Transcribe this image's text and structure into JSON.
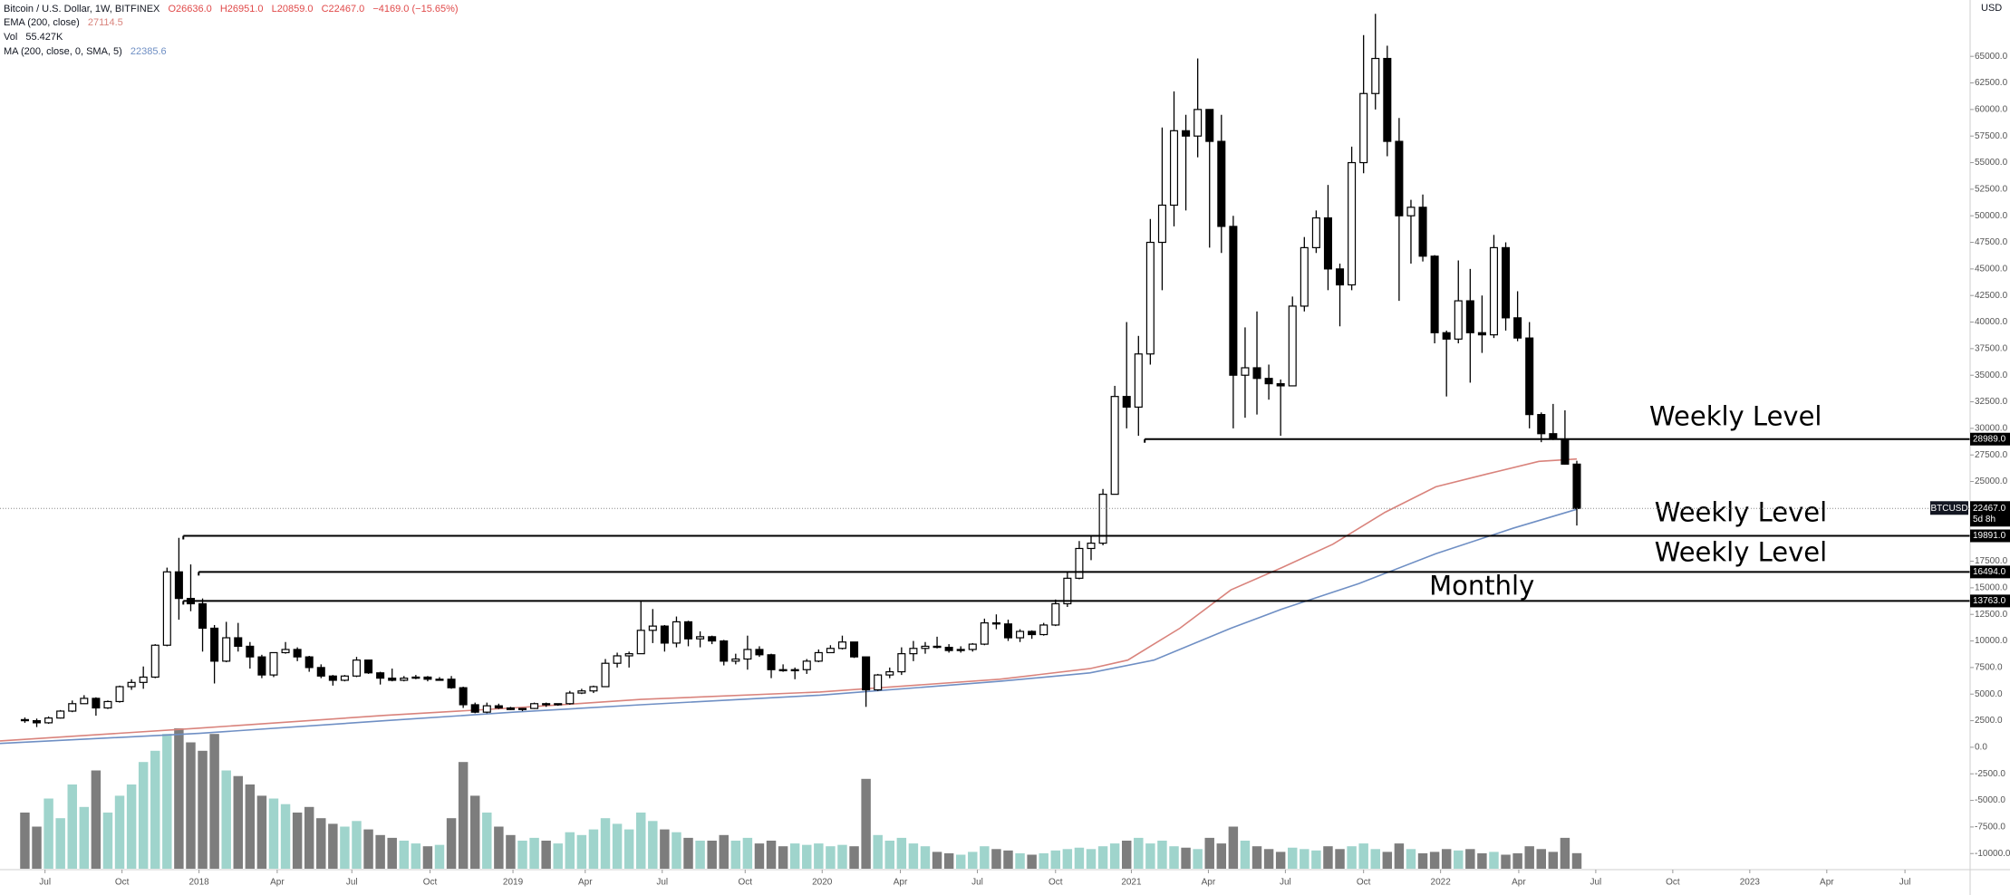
{
  "chart_data": {
    "type": "candlestick",
    "header": {
      "title": "Bitcoin / U.S. Dollar, 1W, BITFINEX",
      "ohlc": [
        "O26636.0",
        "H26951.0",
        "L20859.0",
        "C22467.0",
        "−4169.0 (−15.65%)"
      ],
      "volume_name": "Vol",
      "volume_label": "55.427K",
      "currency": "USD"
    },
    "up_color": "#ffffff",
    "down_color": "#000000",
    "vol_up_color": "#9fd4cc",
    "vol_down_color": "#7d7d7d",
    "candles": [
      [
        2600,
        2800,
        2300,
        2500
      ],
      [
        2500,
        2700,
        1900,
        2300
      ],
      [
        2300,
        2900,
        2200,
        2750
      ],
      [
        2750,
        3500,
        2700,
        3400
      ],
      [
        3400,
        4400,
        3300,
        4100
      ],
      [
        4100,
        4900,
        4100,
        4600
      ],
      [
        4600,
        4700,
        2970,
        3700
      ],
      [
        3700,
        4400,
        3600,
        4300
      ],
      [
        4300,
        5800,
        4200,
        5700
      ],
      [
        5700,
        6400,
        5400,
        6100
      ],
      [
        6100,
        7600,
        5500,
        6600
      ],
      [
        6600,
        9700,
        6500,
        9600
      ],
      [
        9600,
        16900,
        9500,
        16500
      ],
      [
        16500,
        19700,
        12000,
        14000
      ],
      [
        14000,
        17200,
        12800,
        13500
      ],
      [
        13500,
        14000,
        9000,
        11200
      ],
      [
        11200,
        11500,
        6000,
        8100
      ],
      [
        8100,
        11800,
        8000,
        10300
      ],
      [
        10300,
        11700,
        9000,
        9500
      ],
      [
        9500,
        9900,
        7400,
        8500
      ],
      [
        8500,
        8700,
        6500,
        6800
      ],
      [
        6800,
        8900,
        6600,
        8900
      ],
      [
        8900,
        9900,
        8800,
        9200
      ],
      [
        9200,
        9400,
        8100,
        8500
      ],
      [
        8500,
        8600,
        7100,
        7500
      ],
      [
        7500,
        7800,
        6500,
        6700
      ],
      [
        6700,
        6800,
        5800,
        6300
      ],
      [
        6300,
        6800,
        6200,
        6700
      ],
      [
        6700,
        8500,
        6600,
        8200
      ],
      [
        8200,
        8200,
        6900,
        7000
      ],
      [
        7000,
        7100,
        5900,
        6500
      ],
      [
        6500,
        7400,
        6200,
        6300
      ],
      [
        6300,
        6700,
        6200,
        6500
      ],
      [
        6500,
        6800,
        6400,
        6600
      ],
      [
        6600,
        6700,
        6200,
        6400
      ],
      [
        6400,
        6600,
        6300,
        6400
      ],
      [
        6400,
        6700,
        5500,
        5600
      ],
      [
        5600,
        5700,
        3700,
        4000
      ],
      [
        4000,
        4200,
        3200,
        3300
      ],
      [
        3300,
        4200,
        3200,
        3900
      ],
      [
        3900,
        4100,
        3600,
        3700
      ],
      [
        3700,
        3800,
        3500,
        3550
      ],
      [
        3550,
        3700,
        3400,
        3650
      ],
      [
        3650,
        4200,
        3600,
        4100
      ],
      [
        4100,
        4200,
        3800,
        4000
      ],
      [
        4000,
        4100,
        3900,
        4100
      ],
      [
        4100,
        5300,
        4000,
        5100
      ],
      [
        5100,
        5500,
        5000,
        5300
      ],
      [
        5300,
        5800,
        5100,
        5700
      ],
      [
        5700,
        8300,
        5700,
        7900
      ],
      [
        7900,
        8900,
        7500,
        8600
      ],
      [
        8600,
        9000,
        7500,
        8800
      ],
      [
        8800,
        13800,
        8800,
        11000
      ],
      [
        11000,
        13000,
        9800,
        11400
      ],
      [
        11400,
        11500,
        9000,
        9800
      ],
      [
        9800,
        12300,
        9400,
        11800
      ],
      [
        11800,
        11900,
        9500,
        10200
      ],
      [
        10200,
        10900,
        9400,
        10400
      ],
      [
        10400,
        10500,
        9700,
        10000
      ],
      [
        10000,
        10100,
        7700,
        8100
      ],
      [
        8100,
        8800,
        7800,
        8300
      ],
      [
        8300,
        10500,
        7300,
        9200
      ],
      [
        9200,
        9500,
        8500,
        8700
      ],
      [
        8700,
        8800,
        6500,
        7300
      ],
      [
        7300,
        7800,
        7100,
        7200
      ],
      [
        7200,
        7500,
        6400,
        7300
      ],
      [
        7300,
        8300,
        6900,
        8100
      ],
      [
        8100,
        9200,
        8000,
        8900
      ],
      [
        8900,
        9600,
        8900,
        9300
      ],
      [
        9300,
        10500,
        9200,
        9900
      ],
      [
        9900,
        9900,
        8400,
        8500
      ],
      [
        8500,
        8500,
        3800,
        5400
      ],
      [
        5400,
        6900,
        5300,
        6800
      ],
      [
        6800,
        7500,
        6500,
        7100
      ],
      [
        7100,
        9400,
        6800,
        8800
      ],
      [
        8800,
        10000,
        8100,
        9300
      ],
      [
        9300,
        9900,
        8800,
        9500
      ],
      [
        9500,
        10400,
        9300,
        9400
      ],
      [
        9400,
        9700,
        8900,
        9100
      ],
      [
        9100,
        9500,
        8900,
        9200
      ],
      [
        9200,
        9800,
        9000,
        9700
      ],
      [
        9700,
        12100,
        9600,
        11700
      ],
      [
        11700,
        12500,
        11100,
        11600
      ],
      [
        11600,
        12000,
        10000,
        10300
      ],
      [
        10300,
        11100,
        9900,
        10900
      ],
      [
        10900,
        11000,
        10200,
        10600
      ],
      [
        10600,
        11700,
        10500,
        11500
      ],
      [
        11500,
        13900,
        11400,
        13500
      ],
      [
        13500,
        16500,
        13200,
        15900
      ],
      [
        15900,
        19400,
        15800,
        18700
      ],
      [
        18700,
        19900,
        17600,
        19200
      ],
      [
        19200,
        24300,
        19000,
        23800
      ],
      [
        23800,
        34000,
        23800,
        33000
      ],
      [
        33000,
        40000,
        30000,
        32000
      ],
      [
        32000,
        38700,
        29300,
        37000
      ],
      [
        37000,
        49700,
        36000,
        47500
      ],
      [
        47500,
        58300,
        43000,
        51000
      ],
      [
        51000,
        61700,
        49000,
        58000
      ],
      [
        58000,
        59500,
        50500,
        57500
      ],
      [
        57500,
        64800,
        55500,
        60000
      ],
      [
        60000,
        60000,
        47000,
        57000
      ],
      [
        57000,
        59500,
        46500,
        49000
      ],
      [
        49000,
        50000,
        30000,
        35000
      ],
      [
        35000,
        39500,
        31000,
        35700
      ],
      [
        35700,
        41000,
        31300,
        34700
      ],
      [
        34700,
        36000,
        32700,
        34200
      ],
      [
        34200,
        34600,
        29300,
        34000
      ],
      [
        34000,
        42400,
        34000,
        41500
      ],
      [
        41500,
        48000,
        41000,
        47000
      ],
      [
        47000,
        50500,
        46500,
        49800
      ],
      [
        49800,
        52900,
        43000,
        45000
      ],
      [
        45000,
        45500,
        39600,
        43500
      ],
      [
        43500,
        56500,
        43000,
        55000
      ],
      [
        55000,
        67000,
        54000,
        61500
      ],
      [
        61500,
        69000,
        60000,
        64800
      ],
      [
        64800,
        66000,
        55600,
        57000
      ],
      [
        57000,
        59200,
        42000,
        50000
      ],
      [
        50000,
        51500,
        45500,
        50800
      ],
      [
        50800,
        52000,
        45700,
        46200
      ],
      [
        46200,
        46300,
        38000,
        39000
      ],
      [
        39000,
        39200,
        33000,
        38400
      ],
      [
        38400,
        45800,
        38000,
        42000
      ],
      [
        42000,
        45000,
        34300,
        39000
      ],
      [
        39000,
        42500,
        37100,
        38800
      ],
      [
        38800,
        48200,
        38500,
        47000
      ],
      [
        47000,
        47500,
        39200,
        40400
      ],
      [
        40400,
        42900,
        38200,
        38500
      ],
      [
        38500,
        40000,
        30000,
        31300
      ],
      [
        31300,
        31500,
        28700,
        29500
      ],
      [
        29500,
        32300,
        28900,
        29000
      ],
      [
        29000,
        31700,
        26600,
        26636
      ],
      [
        26636,
        26951,
        20859,
        22467
      ]
    ],
    "volume": [
      200,
      150,
      250,
      180,
      300,
      220,
      350,
      200,
      260,
      300,
      380,
      420,
      480,
      500,
      450,
      420,
      480,
      350,
      330,
      300,
      260,
      250,
      230,
      200,
      220,
      180,
      160,
      150,
      170,
      140,
      120,
      110,
      100,
      90,
      80,
      85,
      180,
      380,
      260,
      200,
      150,
      120,
      100,
      110,
      100,
      90,
      130,
      120,
      140,
      180,
      160,
      140,
      200,
      170,
      140,
      130,
      110,
      100,
      100,
      120,
      100,
      110,
      90,
      100,
      80,
      90,
      85,
      90,
      80,
      85,
      80,
      320,
      120,
      100,
      110,
      90,
      80,
      60,
      55,
      50,
      60,
      80,
      70,
      65,
      55,
      50,
      55,
      65,
      70,
      75,
      70,
      80,
      90,
      100,
      110,
      90,
      100,
      80,
      75,
      70,
      110,
      90,
      150,
      100,
      80,
      70,
      60,
      75,
      70,
      65,
      80,
      70,
      80,
      90,
      70,
      60,
      90,
      70,
      55,
      60,
      70,
      65,
      70,
      55,
      60,
      50,
      55,
      80,
      70,
      60,
      110,
      55.427
    ],
    "ema": {
      "name": "EMA (200, close)",
      "value_label": "27114.5",
      "color": "#d9837c",
      "x": [
        -2.1,
        14.7,
        30.4,
        41.2,
        52.0,
        67.1,
        82.3,
        89.9,
        93.1,
        97.5,
        101.8,
        106.1,
        110.4,
        114.8,
        119.1,
        123.4,
        127.8,
        131
      ],
      "values": [
        600,
        1800,
        3000,
        3700,
        4500,
        5200,
        6400,
        7400,
        8200,
        11200,
        14800,
        16900,
        19100,
        22100,
        24500,
        25700,
        26900,
        27114.5
      ]
    },
    "ma": {
      "name": "MA (200, close, 0, SMA, 5)",
      "value_label": "22385.6",
      "color": "#6f8fc4",
      "x": [
        -2.1,
        14.7,
        30.4,
        41.2,
        52.0,
        67.1,
        82.3,
        89.9,
        95.3,
        101.8,
        106.1,
        112.6,
        119.1,
        125.6,
        131
      ],
      "values": [
        360,
        1300,
        2500,
        3300,
        4000,
        4900,
        6200,
        7000,
        8200,
        11200,
        13000,
        15400,
        18200,
        20600,
        22385.6
      ]
    },
    "levels": [
      {
        "value": 28989,
        "label": "28989.0",
        "text": "Weekly Level"
      },
      {
        "value": 19891,
        "label": "19891.0",
        "text": "Weekly Level"
      },
      {
        "value": 16494,
        "label": "16494.0",
        "text": "Weekly Level"
      },
      {
        "value": 13763,
        "label": "13763.0",
        "text": "Monthly"
      }
    ],
    "last_price": {
      "value": 22467,
      "label": "22467.0",
      "symbol": "BTCUSD",
      "countdown": "5d 8h"
    },
    "xlim": [
      -2.1,
      164.2
    ],
    "ylim": [
      -13900,
      70300
    ],
    "xticks": [
      {
        "value": 1.7,
        "label": "Jul"
      },
      {
        "value": 8.2,
        "label": "Oct"
      },
      {
        "value": 14.7,
        "label": "2018"
      },
      {
        "value": 21.3,
        "label": "Apr"
      },
      {
        "value": 27.6,
        "label": "Jul"
      },
      {
        "value": 34.2,
        "label": "Oct"
      },
      {
        "value": 41.2,
        "label": "2019"
      },
      {
        "value": 47.3,
        "label": "Apr"
      },
      {
        "value": 53.8,
        "label": "Jul"
      },
      {
        "value": 60.8,
        "label": "Oct"
      },
      {
        "value": 67.3,
        "label": "2020"
      },
      {
        "value": 73.9,
        "label": "Apr"
      },
      {
        "value": 80.4,
        "label": "Jul"
      },
      {
        "value": 87.0,
        "label": "Oct"
      },
      {
        "value": 93.4,
        "label": "2021"
      },
      {
        "value": 99.9,
        "label": "Apr"
      },
      {
        "value": 106.4,
        "label": "Jul"
      },
      {
        "value": 113.0,
        "label": "Oct"
      },
      {
        "value": 119.5,
        "label": "2022"
      },
      {
        "value": 126.1,
        "label": "Apr"
      },
      {
        "value": 132.6,
        "label": "Jul"
      },
      {
        "value": 139.1,
        "label": "Oct"
      },
      {
        "value": 145.6,
        "label": "2023"
      },
      {
        "value": 152.1,
        "label": "Apr"
      },
      {
        "value": 158.7,
        "label": "Jul"
      }
    ],
    "yticks": [
      {
        "value": 65000,
        "label": "65000.0"
      },
      {
        "value": 62500,
        "label": "62500.0"
      },
      {
        "value": 60000,
        "label": "60000.0"
      },
      {
        "value": 57500,
        "label": "57500.0"
      },
      {
        "value": 55000,
        "label": "55000.0"
      },
      {
        "value": 52500,
        "label": "52500.0"
      },
      {
        "value": 50000,
        "label": "50000.0"
      },
      {
        "value": 47500,
        "label": "47500.0"
      },
      {
        "value": 45000,
        "label": "45000.0"
      },
      {
        "value": 42500,
        "label": "42500.0"
      },
      {
        "value": 40000,
        "label": "40000.0"
      },
      {
        "value": 37500,
        "label": "37500.0"
      },
      {
        "value": 35000,
        "label": "35000.0"
      },
      {
        "value": 32500,
        "label": "32500.0"
      },
      {
        "value": 30000,
        "label": "30000.0"
      },
      {
        "value": 27500,
        "label": "27500.0"
      },
      {
        "value": 25000,
        "label": "25000.0"
      },
      {
        "value": 22500,
        "label": "22500.0"
      },
      {
        "value": 20000,
        "label": "20000.0"
      },
      {
        "value": 17500,
        "label": "17500.0"
      },
      {
        "value": 15000,
        "label": "15000.0"
      },
      {
        "value": 12500,
        "label": "12500.0"
      },
      {
        "value": 10000,
        "label": "10000.0"
      },
      {
        "value": 7500,
        "label": "7500.0"
      },
      {
        "value": 5000,
        "label": "5000.0"
      },
      {
        "value": 2500,
        "label": "2500.0"
      },
      {
        "value": 0,
        "label": "0.0"
      },
      {
        "value": -2500,
        "label": "-2500.0"
      },
      {
        "value": -5000,
        "label": "-5000.0"
      },
      {
        "value": -7500,
        "label": "-7500.0"
      },
      {
        "value": -10000,
        "label": "-10000.0"
      }
    ],
    "grid": false
  }
}
